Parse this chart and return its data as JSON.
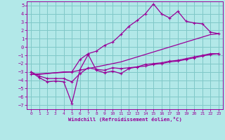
{
  "xlabel": "Windchill (Refroidissement éolien,°C)",
  "bg_color": "#b2e8e8",
  "grid_color": "#80c8c8",
  "line_color": "#990099",
  "x_ticks": [
    0,
    1,
    2,
    3,
    4,
    5,
    6,
    7,
    8,
    9,
    10,
    11,
    12,
    13,
    14,
    15,
    16,
    17,
    18,
    19,
    20,
    21,
    22,
    23
  ],
  "y_ticks": [
    -7,
    -6,
    -5,
    -4,
    -3,
    -2,
    -1,
    0,
    1,
    2,
    3,
    4,
    5
  ],
  "ylim": [
    -7.5,
    5.5
  ],
  "xlim": [
    -0.5,
    23.5
  ],
  "line1_x": [
    0,
    1,
    2,
    3,
    4,
    5,
    6,
    7,
    8,
    9,
    10,
    11,
    12,
    13,
    14,
    15,
    16,
    17,
    18,
    19,
    20,
    21,
    22,
    23
  ],
  "line1_y": [
    -3.0,
    -3.7,
    -4.2,
    -4.1,
    -4.2,
    -6.8,
    -2.7,
    -0.9,
    -2.8,
    -3.1,
    -2.9,
    -3.2,
    -2.6,
    -2.4,
    -2.3,
    -2.1,
    -2.0,
    -1.8,
    -1.7,
    -1.5,
    -1.3,
    -1.1,
    -0.9,
    -0.8
  ],
  "line2_x": [
    0,
    1,
    2,
    3,
    4,
    5,
    6,
    7,
    8,
    9,
    10,
    11,
    12,
    13,
    14,
    15,
    16,
    17,
    18,
    19,
    20,
    21,
    22,
    23
  ],
  "line2_y": [
    -3.3,
    -3.3,
    -3.2,
    -3.1,
    -3.0,
    -3.0,
    -2.8,
    -2.6,
    -2.4,
    -2.2,
    -2.0,
    -1.8,
    -1.5,
    -1.2,
    -0.9,
    -0.6,
    -0.3,
    0.0,
    0.3,
    0.6,
    0.9,
    1.2,
    1.5,
    1.6
  ],
  "line3_x": [
    0,
    1,
    2,
    3,
    4,
    5,
    6,
    7,
    8,
    9,
    10,
    11,
    12,
    13,
    14,
    15,
    16,
    17,
    18,
    19,
    20,
    21,
    22,
    23
  ],
  "line3_y": [
    -3.0,
    -3.5,
    -3.8,
    -3.8,
    -3.8,
    -4.2,
    -3.2,
    -2.5,
    -2.7,
    -2.8,
    -2.5,
    -2.6,
    -2.5,
    -2.4,
    -2.1,
    -2.0,
    -1.9,
    -1.7,
    -1.6,
    -1.4,
    -1.2,
    -1.0,
    -0.8,
    -0.8
  ],
  "line4_x": [
    0,
    5,
    6,
    7,
    8,
    9,
    10,
    11,
    12,
    13,
    14,
    15,
    16,
    17,
    18,
    19,
    20,
    21,
    22,
    23
  ],
  "line4_y": [
    -3.3,
    -3.0,
    -1.5,
    -0.8,
    -0.5,
    0.2,
    0.6,
    1.5,
    2.5,
    3.2,
    4.0,
    5.2,
    4.0,
    3.5,
    4.3,
    3.1,
    2.9,
    2.8,
    1.8,
    1.6
  ]
}
